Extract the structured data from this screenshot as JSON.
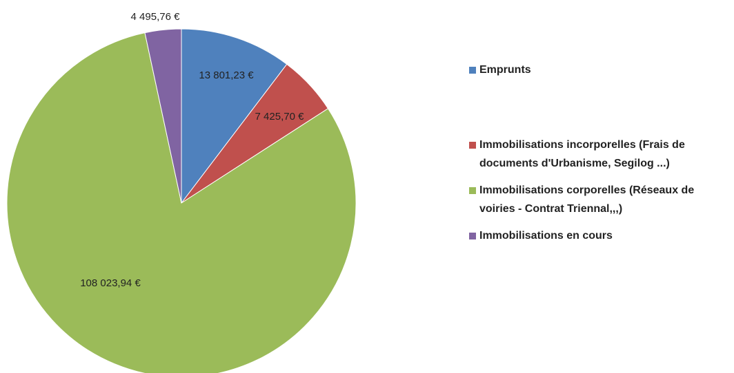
{
  "chart_data": {
    "type": "pie",
    "categories": [
      "Emprunts",
      "Immobilisations incorporelles (Frais de documents d'Urbanisme, Segilog ...)",
      "Immobilisations corporelles (Réseaux de voiries - Contrat Triennal,,,)",
      "Immobilisations en cours"
    ],
    "values": [
      13801.23,
      7425.7,
      108023.94,
      4495.76
    ],
    "value_labels": [
      "13 801,23 €",
      "7 425,70 €",
      "108 023,94 €",
      "4 495,76 €"
    ],
    "colors": [
      "#4f81bd",
      "#c0504d",
      "#9bbb59",
      "#8064a2"
    ],
    "legend": "right"
  }
}
